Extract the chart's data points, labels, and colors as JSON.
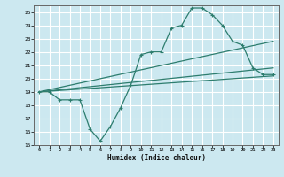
{
  "xlabel": "Humidex (Indice chaleur)",
  "x_values": [
    0,
    1,
    2,
    3,
    4,
    5,
    6,
    7,
    8,
    9,
    10,
    11,
    12,
    13,
    14,
    15,
    16,
    17,
    18,
    19,
    20,
    21,
    22,
    23
  ],
  "line1_y": [
    19,
    19,
    18.4,
    18.4,
    18.4,
    16.2,
    15.3,
    16.4,
    17.8,
    19.5,
    21.8,
    22.0,
    22.0,
    23.8,
    24.0,
    25.3,
    25.3,
    24.8,
    24.0,
    22.8,
    22.5,
    20.8,
    20.3,
    20.3
  ],
  "line2_x": [
    0,
    23
  ],
  "line2_y": [
    19.0,
    22.8
  ],
  "line3_x": [
    0,
    23
  ],
  "line3_y": [
    19.0,
    20.8
  ],
  "line4_x": [
    0,
    23
  ],
  "line4_y": [
    19.0,
    20.2
  ],
  "color": "#2d7d6e",
  "bg_color": "#cce8f0",
  "grid_color": "#ffffff",
  "ylim": [
    15,
    25.5
  ],
  "xlim": [
    -0.5,
    23.5
  ],
  "yticks": [
    15,
    16,
    17,
    18,
    19,
    20,
    21,
    22,
    23,
    24,
    25
  ],
  "xticks": [
    0,
    1,
    2,
    3,
    4,
    5,
    6,
    7,
    8,
    9,
    10,
    11,
    12,
    13,
    14,
    15,
    16,
    17,
    18,
    19,
    20,
    21,
    22,
    23
  ]
}
